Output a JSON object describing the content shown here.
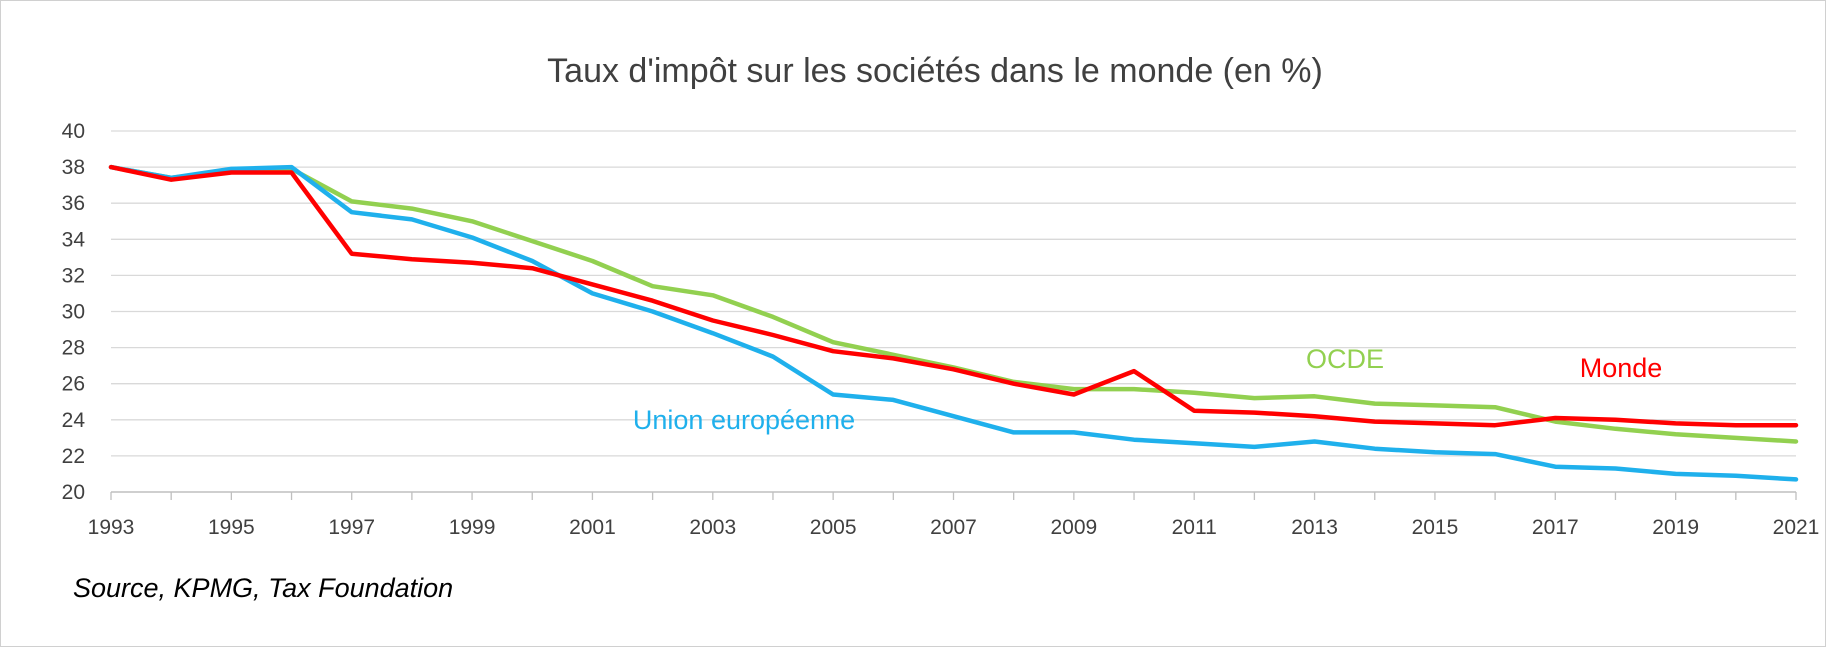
{
  "chart_data": {
    "type": "line",
    "title": "Taux d'impôt sur les sociétés dans le monde (en %)",
    "source": "Source, KPMG, Tax Foundation",
    "xlabel": "",
    "ylabel": "",
    "ylim": [
      20,
      40
    ],
    "y_ticks": [
      "20",
      "22",
      "24",
      "26",
      "28",
      "30",
      "32",
      "34",
      "36",
      "38",
      "40"
    ],
    "x": [
      1993,
      1994,
      1995,
      1996,
      1997,
      1998,
      1999,
      2000,
      2001,
      2002,
      2003,
      2004,
      2005,
      2006,
      2007,
      2008,
      2009,
      2010,
      2011,
      2012,
      2013,
      2014,
      2015,
      2016,
      2017,
      2018,
      2019,
      2020,
      2021
    ],
    "x_ticks": [
      "1993",
      "1995",
      "1997",
      "1999",
      "2001",
      "2003",
      "2005",
      "2007",
      "2009",
      "2011",
      "2013",
      "2015",
      "2017",
      "2019",
      "2021"
    ],
    "grid": "horizontal",
    "series": [
      {
        "name": "OCDE",
        "color": "#92d050",
        "values": [
          38.0,
          37.4,
          37.8,
          37.9,
          36.1,
          35.7,
          35.0,
          33.9,
          32.8,
          31.4,
          30.9,
          29.7,
          28.3,
          27.6,
          26.9,
          26.1,
          25.7,
          25.7,
          25.5,
          25.2,
          25.3,
          24.9,
          24.8,
          24.7,
          23.9,
          23.5,
          23.2,
          23.0,
          22.8
        ]
      },
      {
        "name": "Union européenne",
        "color": "#1fb0ec",
        "values": [
          38.0,
          37.4,
          37.9,
          38.0,
          35.5,
          35.1,
          34.1,
          32.8,
          31.0,
          30.0,
          28.8,
          27.5,
          25.4,
          25.1,
          24.2,
          23.3,
          23.3,
          22.9,
          22.7,
          22.5,
          22.8,
          22.4,
          22.2,
          22.1,
          21.4,
          21.3,
          21.0,
          20.9,
          20.7
        ]
      },
      {
        "name": "Monde",
        "color": "#ff0000",
        "values": [
          38.0,
          37.3,
          37.7,
          37.7,
          33.2,
          32.9,
          32.7,
          32.4,
          31.5,
          30.6,
          29.5,
          28.7,
          27.8,
          27.4,
          26.8,
          26.0,
          25.4,
          26.7,
          24.5,
          24.4,
          24.2,
          23.9,
          23.8,
          23.7,
          24.1,
          24.0,
          23.8,
          23.7,
          23.7
        ]
      }
    ]
  }
}
